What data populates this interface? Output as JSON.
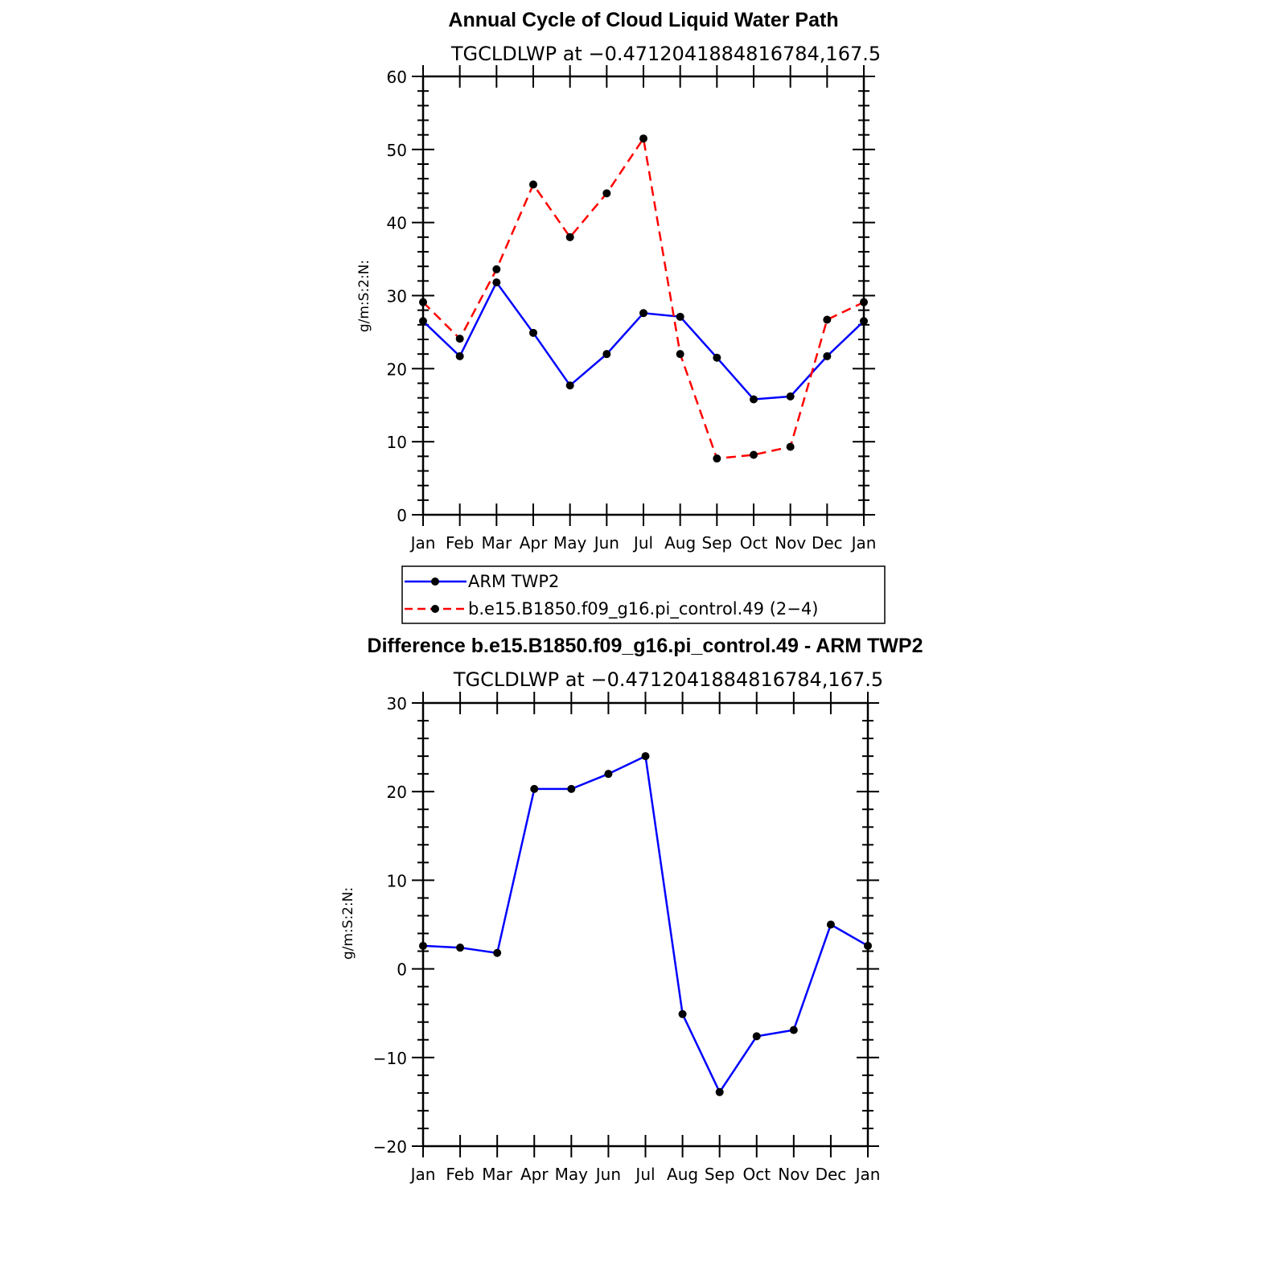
{
  "chart_data": [
    {
      "type": "line",
      "title": "Annual Cycle of Cloud Liquid Water Path",
      "subtitle": "TGCLDLWP at −0.4712041884816784,167.5",
      "ylabel": "g/m:S:2:N:",
      "xlabel": "",
      "ylim": [
        0,
        60
      ],
      "yticks": [
        "0",
        "10",
        "20",
        "30",
        "40",
        "50",
        "60"
      ],
      "categories": [
        "Jan",
        "Feb",
        "Mar",
        "Apr",
        "May",
        "Jun",
        "Jul",
        "Aug",
        "Sep",
        "Oct",
        "Nov",
        "Dec",
        "Jan"
      ],
      "grid": false,
      "legend_position": "bottom",
      "series": [
        {
          "name": "ARM  TWP2",
          "color": "#0000ff",
          "dash": "solid",
          "values": [
            26.5,
            21.7,
            31.8,
            24.9,
            17.7,
            22.0,
            27.6,
            27.1,
            21.5,
            15.8,
            16.2,
            21.7,
            26.5
          ]
        },
        {
          "name": "b.e15.B1850.f09_g16.pi_control.49 (2−4)",
          "color": "#ff0000",
          "dash": "dashed",
          "values": [
            29.1,
            24.1,
            33.6,
            45.2,
            38.0,
            44.0,
            51.5,
            22.0,
            7.7,
            8.2,
            9.3,
            26.7,
            29.1
          ]
        }
      ]
    },
    {
      "type": "line",
      "title": "Difference b.e15.B1850.f09_g16.pi_control.49 - ARM TWP2",
      "subtitle": "TGCLDLWP at −0.4712041884816784,167.5",
      "ylabel": "g/m:S:2:N:",
      "xlabel": "",
      "ylim": [
        -20,
        30
      ],
      "yticks": [
        "−20",
        "−10",
        "0",
        "10",
        "20",
        "30"
      ],
      "categories": [
        "Jan",
        "Feb",
        "Mar",
        "Apr",
        "May",
        "Jun",
        "Jul",
        "Aug",
        "Sep",
        "Oct",
        "Nov",
        "Dec",
        "Jan"
      ],
      "grid": false,
      "series": [
        {
          "color": "#0000ff",
          "dash": "solid",
          "values": [
            2.6,
            2.4,
            1.8,
            20.3,
            20.3,
            22.0,
            24.0,
            -5.1,
            -13.9,
            -7.6,
            -6.9,
            5.0,
            2.6
          ]
        }
      ]
    }
  ]
}
